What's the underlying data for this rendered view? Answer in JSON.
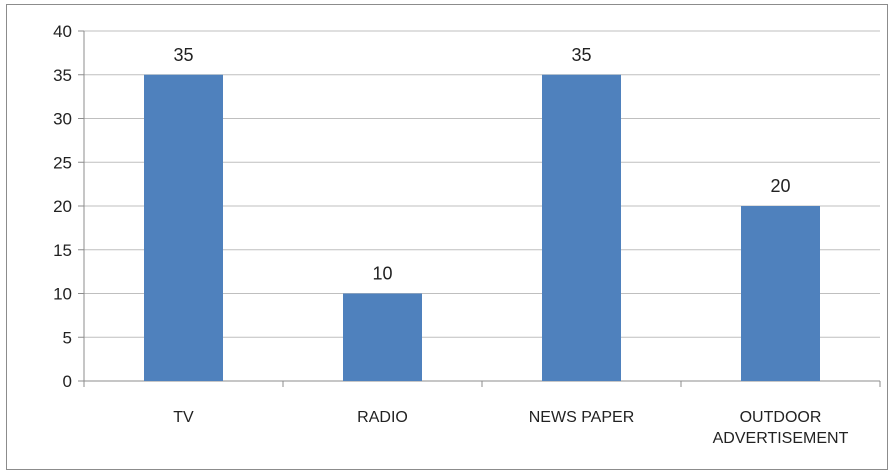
{
  "chart_data": {
    "type": "bar",
    "title": "",
    "xlabel": "",
    "ylabel": "",
    "categories": [
      "TV",
      "RADIO",
      "NEWS PAPER",
      "OUTDOOR ADVERTISEMENT"
    ],
    "category_lines": [
      [
        "TV"
      ],
      [
        "RADIO"
      ],
      [
        "NEWS PAPER"
      ],
      [
        "OUTDOOR",
        "ADVERTISEMENT"
      ]
    ],
    "values": [
      35,
      10,
      35,
      20
    ],
    "data_labels": [
      "35",
      "10",
      "35",
      "20"
    ],
    "ylim": [
      0,
      40
    ],
    "yticks": [
      "0",
      "5",
      "10",
      "15",
      "20",
      "25",
      "30",
      "35",
      "40"
    ],
    "grid": true,
    "legend": "none",
    "colors": {
      "bar": "#4f81bd",
      "grid": "#bfbfbf",
      "axis": "#8c8c8c"
    }
  }
}
